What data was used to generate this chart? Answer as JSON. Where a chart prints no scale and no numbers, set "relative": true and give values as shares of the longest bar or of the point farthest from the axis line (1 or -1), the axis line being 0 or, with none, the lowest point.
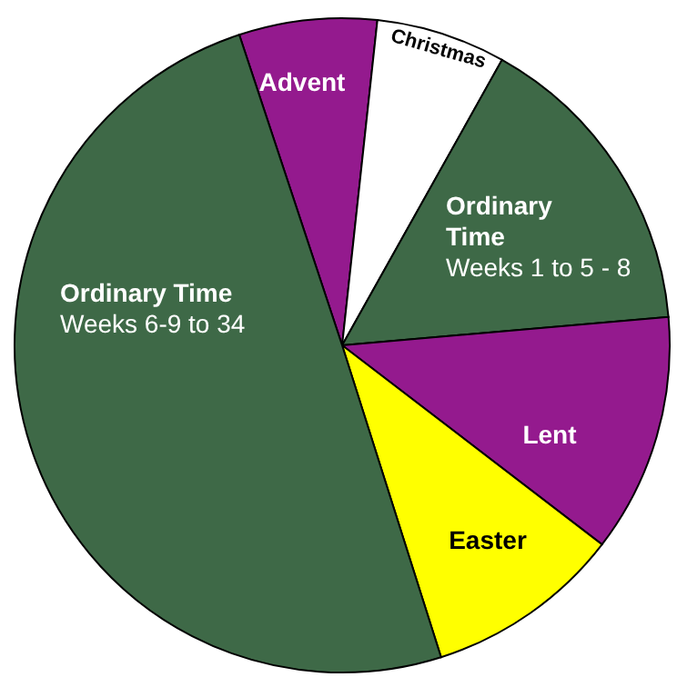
{
  "chart_data": {
    "type": "pie",
    "relative": true,
    "categories": [
      "Advent",
      "Christmas",
      "Ordinary\nTime\nWeeks 1 to 5 - 8",
      "Lent",
      "Easter",
      "Ordinary Time\nWeeks 6-9 to 34"
    ],
    "values": [
      6.8,
      6.4,
      15.5,
      11.8,
      9.7,
      49.8
    ],
    "colors": [
      "#941a8e",
      "#ffffff",
      "#3e6947",
      "#941a8e",
      "#ffff00",
      "#3e6947"
    ]
  }
}
